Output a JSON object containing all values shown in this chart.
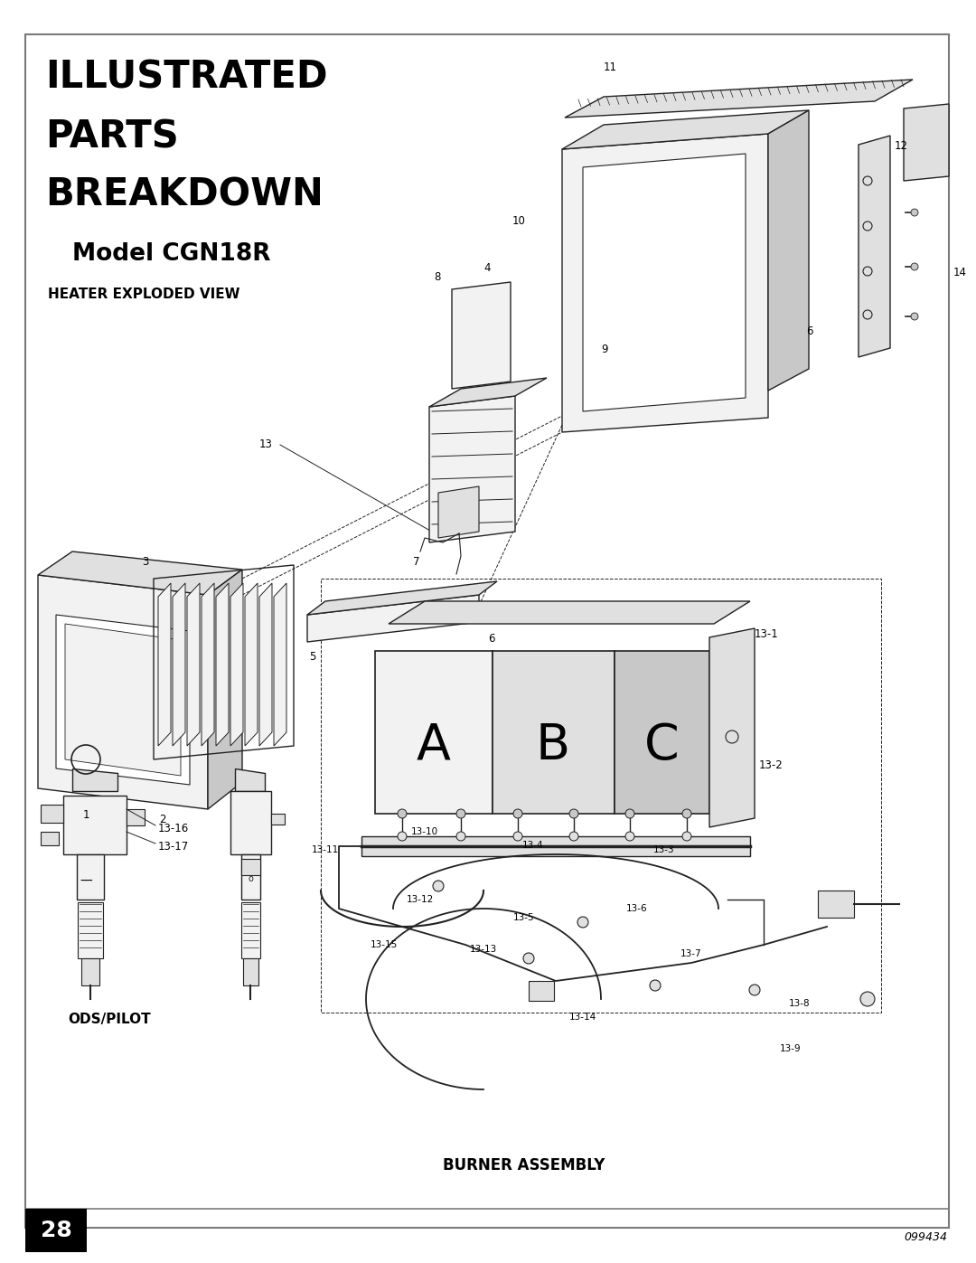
{
  "bg_color": "#ffffff",
  "border_color": "#7a7a7a",
  "title_lines": [
    "ILLUSTRATED",
    "PARTS",
    "BREAKDOWN"
  ],
  "subtitle": "Model CGN18R",
  "heater_label": "HEATER EXPLODED VIEW",
  "ods_label": "ODS/PILOT",
  "burner_label": "BURNER ASSEMBLY",
  "page_number": "28",
  "doc_number": "099434",
  "title_fontsize": 30,
  "subtitle_fontsize": 19,
  "section_label_fontsize": 11,
  "part_label_fontsize": 8.5,
  "lc": "#222222",
  "lw": 1.0,
  "fill_light": "#f2f2f2",
  "fill_mid": "#e0e0e0",
  "fill_dark": "#c8c8c8"
}
